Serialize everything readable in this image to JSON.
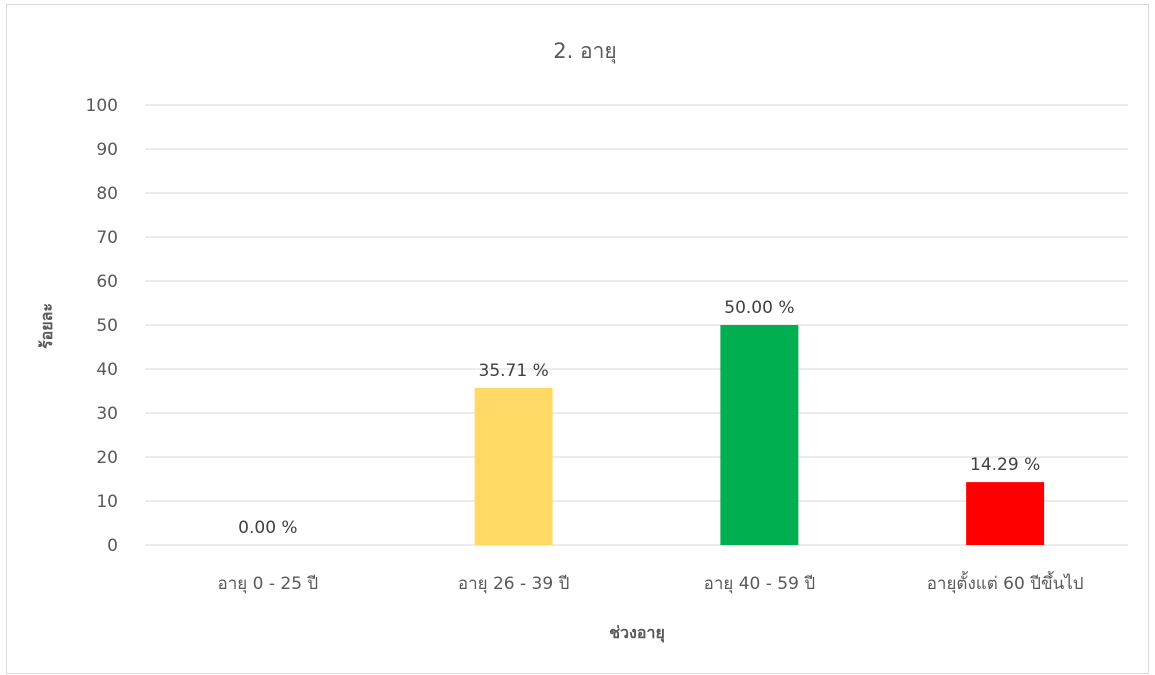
{
  "chart_data": {
    "type": "bar",
    "title": "2. อายุ",
    "xlabel": "ช่วงอายุ",
    "ylabel": "ร้อยละ",
    "categories": [
      "อายุ 0 - 25 ปี",
      "อายุ 26 - 39 ปี",
      "อายุ 40 - 59 ปี",
      "อายุตั้งแต่ 60 ปีขึ้นไป"
    ],
    "values": [
      0.0,
      35.71,
      50.0,
      14.29
    ],
    "data_labels": [
      "0.00 %",
      "35.71 %",
      "50.00 %",
      "14.29 %"
    ],
    "bar_colors": [
      "#ffd966",
      "#ffd966",
      "#00b050",
      "#ff0000"
    ],
    "ylim": [
      0,
      100
    ],
    "yticks": [
      0,
      10,
      20,
      30,
      40,
      50,
      60,
      70,
      80,
      90,
      100
    ],
    "grid": true,
    "legend": "none",
    "gridline_color": "#d9d9d9",
    "text_color": "#595959"
  }
}
